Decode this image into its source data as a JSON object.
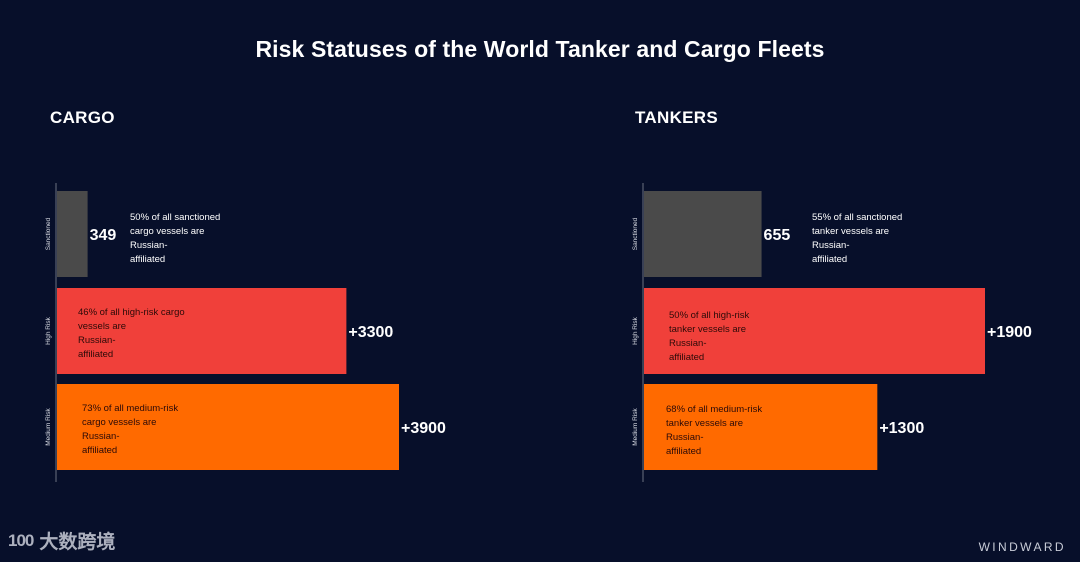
{
  "title": "Risk Statuses of the World Tanker and Cargo Fleets",
  "colors": {
    "background": "#070f2a",
    "sanctioned": "#4a4a4a",
    "high_risk": "#f0403a",
    "medium_risk": "#ff6a00",
    "axis": "#6b7080"
  },
  "chart_data": [
    {
      "type": "bar",
      "orientation": "horizontal",
      "title": "CARGO",
      "categories": [
        "Sanctioned",
        "High Risk",
        "Medium Risk"
      ],
      "values": [
        349,
        3300,
        3900
      ],
      "value_labels": [
        "349",
        "+3300",
        "+3900"
      ],
      "annotations": [
        "50% of all sanctioned cargo vessels are Russian-affiliated",
        "46% of all high-risk cargo vessels are Russian-affiliated",
        "73% of all medium-risk cargo vessels are Russian-affiliated"
      ],
      "xlim": [
        0,
        3900
      ]
    },
    {
      "type": "bar",
      "orientation": "horizontal",
      "title": "TANKERS",
      "categories": [
        "Sanctioned",
        "High Risk",
        "Medium Risk"
      ],
      "values": [
        655,
        1900,
        1300
      ],
      "value_labels": [
        "655",
        "+1900",
        "+1300"
      ],
      "annotations": [
        "55% of all sanctioned tanker vessels are Russian-affiliated",
        "50% of all high-risk tanker vessels are Russian-affiliated",
        "68% of all medium-risk tanker vessels are Russian-affiliated"
      ],
      "xlim": [
        0,
        1900
      ]
    }
  ],
  "watermark": {
    "mark": "100",
    "text": "大数跨境"
  },
  "brand": "WINDWARD"
}
